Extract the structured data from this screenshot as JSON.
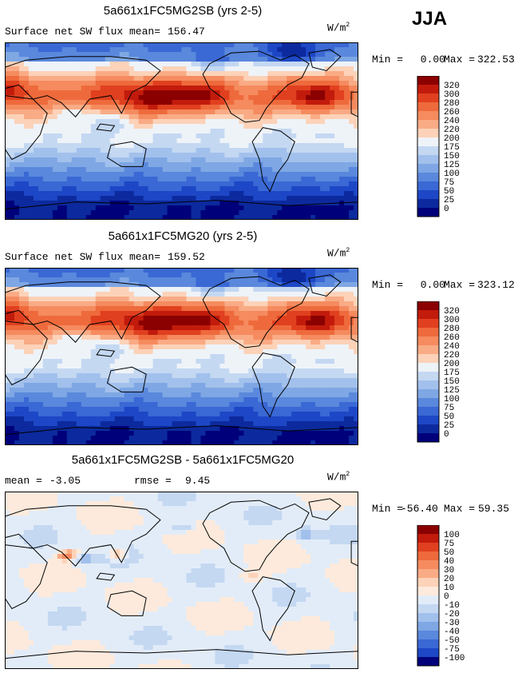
{
  "season": "JJA",
  "units": "W/m",
  "units_exp": "2",
  "colors": {
    "ocean_deep": "#1b3fd6",
    "cool": "#4a7ce0",
    "neutral": "#eef3f8",
    "warm": "#f07a4c",
    "hot": "#d6402a"
  },
  "chart_data": [
    {
      "type": "heatmap",
      "title": "5a661x1FC5MG2SB (yrs 2-5)",
      "subtitle": "Surface net SW flux",
      "stat1_label": "mean=",
      "stat1_value": "156.47",
      "stat2_label": "",
      "stat2_value": "",
      "min_label": "Min =",
      "min_value": "0.00",
      "max_label": "Max =",
      "max_value": "322.53",
      "map_mean": 156.47,
      "levels": [
        "320",
        "300",
        "280",
        "260",
        "240",
        "220",
        "200",
        "175",
        "150",
        "125",
        "100",
        "75",
        "50",
        "25",
        "0"
      ],
      "level_colors": [
        "#8b0000",
        "#c21b0c",
        "#e0401f",
        "#ee6a3c",
        "#f58b5f",
        "#f9ab85",
        "#fcd2b8",
        "#eef3f8",
        "#c4d8f2",
        "#a2c0ec",
        "#7ea7e4",
        "#5a88dc",
        "#3a68d4",
        "#1d47c6",
        "#0c2a9e",
        "#00007a"
      ]
    },
    {
      "type": "heatmap",
      "title": "5a661x1FC5MG20 (yrs 2-5)",
      "subtitle": "Surface net SW flux",
      "stat1_label": "mean=",
      "stat1_value": "159.52",
      "stat2_label": "",
      "stat2_value": "",
      "min_label": "Min =",
      "min_value": "0.00",
      "max_label": "Max =",
      "max_value": "323.12",
      "map_mean": 159.52,
      "levels": [
        "320",
        "300",
        "280",
        "260",
        "240",
        "220",
        "200",
        "175",
        "150",
        "125",
        "100",
        "75",
        "50",
        "25",
        "0"
      ],
      "level_colors": [
        "#8b0000",
        "#c21b0c",
        "#e0401f",
        "#ee6a3c",
        "#f58b5f",
        "#f9ab85",
        "#fcd2b8",
        "#eef3f8",
        "#c4d8f2",
        "#a2c0ec",
        "#7ea7e4",
        "#5a88dc",
        "#3a68d4",
        "#1d47c6",
        "#0c2a9e",
        "#00007a"
      ]
    },
    {
      "type": "heatmap",
      "title": "5a661x1FC5MG2SB - 5a661x1FC5MG20",
      "subtitle": "",
      "stat1_label": "mean =",
      "stat1_value": "-3.05",
      "stat2_label": "rmse =",
      "stat2_value": "9.45",
      "min_label": "Min =",
      "min_value": "-56.40",
      "max_label": "Max =",
      "max_value": "59.35",
      "map_mean": -3.05,
      "levels": [
        "100",
        "75",
        "50",
        "40",
        "30",
        "20",
        "10",
        "0",
        "-10",
        "-20",
        "-30",
        "-40",
        "-50",
        "-75",
        "-100"
      ],
      "level_colors": [
        "#8b0000",
        "#c21b0c",
        "#e0401f",
        "#ee6a3c",
        "#f58b5f",
        "#f9ab85",
        "#fcd2b8",
        "#fdeadc",
        "#e2ecf8",
        "#c4d8f2",
        "#a2c0ec",
        "#7ea7e4",
        "#5a88dc",
        "#3a68d4",
        "#1d47c6",
        "#00007a"
      ]
    }
  ]
}
